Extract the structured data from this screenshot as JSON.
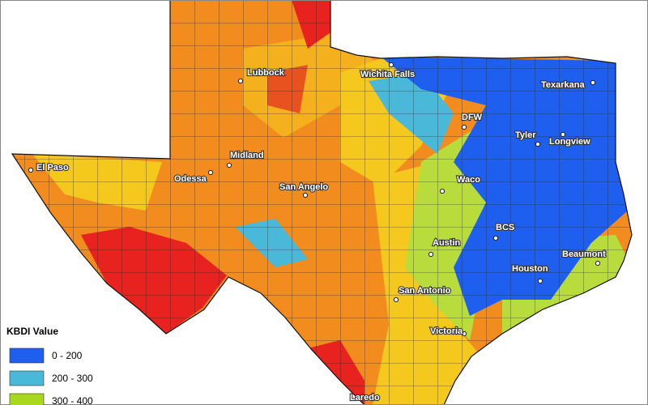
{
  "map": {
    "cities": [
      "Lubbock",
      "Wichita Falls",
      "Texarkana",
      "DFW",
      "Tyler",
      "Longview",
      "El Paso",
      "Midland",
      "Odessa",
      "San Angelo",
      "Waco",
      "BCS",
      "Austin",
      "Beaumont",
      "Houston",
      "San Antonio",
      "Victoria",
      "Laredo"
    ],
    "legend": {
      "title": "KBDI Value",
      "items": [
        {
          "label": "0 - 200",
          "color": "#1f5ff0"
        },
        {
          "label": "200 - 300",
          "color": "#4ab8d8"
        },
        {
          "label": "300 - 400",
          "color": "#a8d81e"
        }
      ]
    }
  }
}
